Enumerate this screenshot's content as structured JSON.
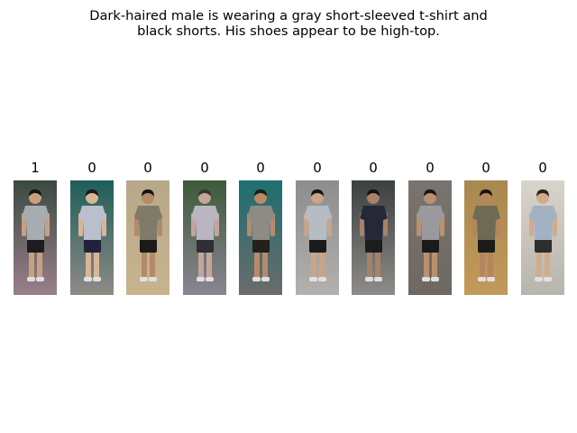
{
  "caption": {
    "line1": "Dark-haired male is wearing a gray short-sleeved t-shirt and",
    "line2": "black shorts.  His shoes appear to be high-top."
  },
  "gallery": [
    {
      "label": "1",
      "bg_top": "#3a4a40",
      "bg_bottom": "#9a7f8c",
      "shirt": "#a8acb0",
      "pants": "#1c1c20",
      "hair": "#151515",
      "skin": "#c9a07e"
    },
    {
      "label": "0",
      "bg_top": "#1f5e5a",
      "bg_bottom": "#8f8a86",
      "shirt": "#b9c0cc",
      "pants": "#20233a",
      "hair": "#1a1a1a",
      "skin": "#d8b596"
    },
    {
      "label": "0",
      "bg_top": "#b8a88a",
      "bg_bottom": "#c7b48e",
      "shirt": "#7e7b6a",
      "pants": "#1b1b1b",
      "hair": "#141414",
      "skin": "#b38a68"
    },
    {
      "label": "0",
      "bg_top": "#3d5a3a",
      "bg_bottom": "#8a8592",
      "shirt": "#b9b5c2",
      "pants": "#2f2d35",
      "hair": "#3a3530",
      "skin": "#c4a59a"
    },
    {
      "label": "0",
      "bg_top": "#1e6f70",
      "bg_bottom": "#6b6b6b",
      "shirt": "#8e8b86",
      "pants": "#23201e",
      "hair": "#1b1b1b",
      "skin": "#b88a6a"
    },
    {
      "label": "0",
      "bg_top": "#8d8d8d",
      "bg_bottom": "#b3b0ad",
      "shirt": "#b5bcc4",
      "pants": "#1b1b1b",
      "hair": "#141414",
      "skin": "#cba387"
    },
    {
      "label": "0",
      "bg_top": "#3c4040",
      "bg_bottom": "#8e8c88",
      "shirt": "#242838",
      "pants": "#1d1d1d",
      "hair": "#121212",
      "skin": "#a9806a"
    },
    {
      "label": "0",
      "bg_top": "#7a7470",
      "bg_bottom": "#6e6862",
      "shirt": "#9a9a9e",
      "pants": "#1a1a1a",
      "hair": "#151515",
      "skin": "#b99070"
    },
    {
      "label": "0",
      "bg_top": "#a88850",
      "bg_bottom": "#c29a5a",
      "shirt": "#6f6a55",
      "pants": "#1b1b1b",
      "hair": "#141414",
      "skin": "#b5865e"
    },
    {
      "label": "0",
      "bg_top": "#d8d4cc",
      "bg_bottom": "#b8b4ae",
      "shirt": "#a3b2c3",
      "pants": "#2e2e2e",
      "hair": "#2a2420",
      "skin": "#d2aa8c"
    }
  ]
}
